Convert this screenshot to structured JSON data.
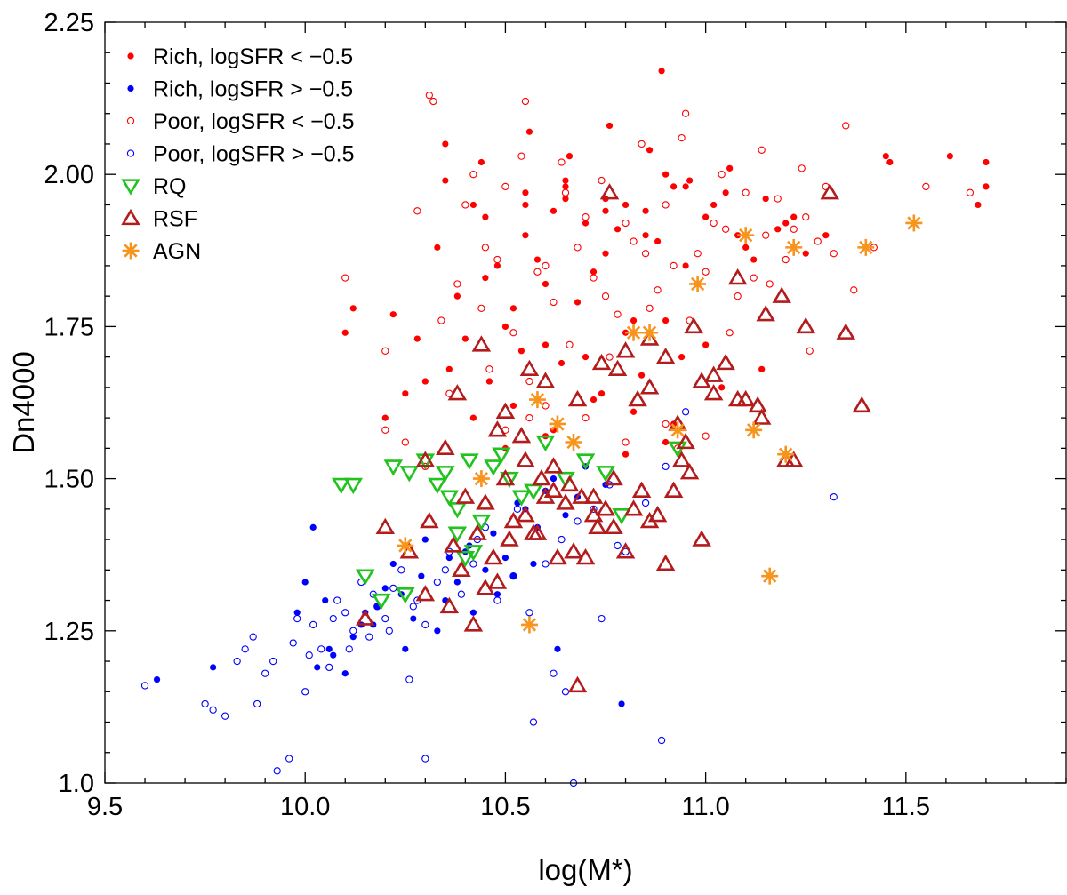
{
  "chart_data": {
    "type": "scatter",
    "title": "",
    "xlabel": "log(M*)",
    "ylabel": "Dn4000",
    "xlim": [
      9.5,
      11.9
    ],
    "ylim": [
      1.0,
      2.25
    ],
    "xticks": [
      {
        "value": 9.5,
        "label": "9.5"
      },
      {
        "value": 10.0,
        "label": "10.0"
      },
      {
        "value": 10.5,
        "label": "10.5"
      },
      {
        "value": 11.0,
        "label": "11.0"
      },
      {
        "value": 11.5,
        "label": "11.5"
      }
    ],
    "yticks": [
      {
        "value": 1.0,
        "label": "1.0"
      },
      {
        "value": 1.25,
        "label": "1.25"
      },
      {
        "value": 1.5,
        "label": "1.50"
      },
      {
        "value": 1.75,
        "label": "1.75"
      },
      {
        "value": 2.0,
        "label": "2.00"
      },
      {
        "value": 2.25,
        "label": "2.25"
      }
    ],
    "grid": false,
    "legend_position": "top-left",
    "series": [
      {
        "name": "Rich, logSFR < −0.5",
        "marker": "filled-circle",
        "color": "#ff0000",
        "x": [
          10.33,
          10.35,
          10.42,
          10.48,
          10.55,
          10.6,
          10.65,
          10.7,
          10.75,
          10.8,
          10.85,
          10.9,
          10.95,
          11.0,
          11.05,
          11.1,
          11.15,
          11.2,
          11.25,
          11.3,
          10.38,
          10.45,
          10.52,
          10.58,
          10.62,
          10.68,
          10.72,
          10.78,
          10.82,
          10.88,
          10.92,
          10.98,
          11.02,
          11.08,
          11.12,
          11.18,
          11.22,
          10.4,
          10.5,
          10.6,
          10.7,
          10.8,
          10.9,
          11.0,
          10.44,
          10.56,
          10.66,
          10.76,
          10.86,
          10.96,
          11.06,
          10.36,
          10.46,
          10.54,
          10.64,
          10.74,
          10.84,
          10.94,
          11.04,
          11.14,
          10.42,
          10.52,
          10.62,
          10.72,
          10.82,
          10.92,
          10.5,
          10.6,
          10.7,
          10.8,
          10.9,
          10.55,
          10.65,
          10.75,
          10.85,
          10.95,
          10.2,
          10.25,
          10.3,
          10.12,
          10.1,
          10.22,
          10.28,
          10.89,
          11.61,
          11.7,
          11.7,
          11.68,
          11.46,
          11.45,
          10.35,
          10.45,
          10.55,
          10.65,
          10.75
        ],
        "y": [
          1.88,
          2.05,
          1.95,
          1.85,
          1.9,
          1.82,
          1.98,
          1.92,
          1.87,
          1.95,
          1.9,
          2.0,
          1.85,
          1.93,
          1.97,
          1.88,
          1.96,
          1.92,
          1.87,
          1.9,
          1.8,
          1.83,
          1.78,
          1.86,
          1.94,
          1.79,
          1.84,
          1.91,
          1.76,
          1.89,
          1.98,
          1.82,
          1.95,
          1.9,
          1.86,
          1.91,
          1.93,
          1.73,
          1.75,
          1.72,
          1.7,
          1.74,
          1.76,
          1.72,
          2.02,
          2.07,
          2.03,
          2.08,
          2.04,
          1.99,
          2.01,
          1.68,
          1.66,
          1.71,
          1.69,
          1.64,
          1.67,
          1.7,
          1.65,
          1.68,
          1.6,
          1.62,
          1.58,
          1.63,
          1.61,
          1.59,
          1.55,
          1.57,
          1.52,
          1.54,
          1.56,
          1.97,
          1.99,
          1.96,
          1.94,
          1.98,
          1.6,
          1.64,
          1.66,
          1.78,
          1.74,
          1.77,
          1.73,
          2.17,
          2.03,
          2.02,
          1.98,
          1.95,
          2.02,
          2.03,
          1.99,
          1.93,
          1.95,
          1.96,
          1.94
        ]
      },
      {
        "name": "Rich, logSFR > −0.5",
        "marker": "filled-circle",
        "color": "#0000ff",
        "x": [
          9.63,
          9.77,
          10.0,
          10.02,
          10.05,
          10.07,
          10.1,
          10.12,
          10.15,
          10.17,
          10.2,
          10.22,
          10.25,
          10.27,
          10.3,
          10.33,
          10.35,
          10.38,
          10.4,
          10.42,
          10.45,
          10.48,
          10.5,
          10.52,
          10.55,
          10.58,
          10.6,
          10.62,
          10.65,
          10.7,
          10.75,
          10.79,
          9.98,
          10.03,
          10.06,
          10.14,
          10.18,
          10.24,
          10.29,
          10.36,
          10.41,
          10.47,
          10.53,
          10.57,
          10.63,
          10.68
        ],
        "y": [
          1.17,
          1.19,
          1.33,
          1.42,
          1.3,
          1.21,
          1.18,
          1.24,
          1.28,
          1.26,
          1.32,
          1.36,
          1.22,
          1.27,
          1.4,
          1.25,
          1.3,
          1.33,
          1.38,
          1.28,
          1.35,
          1.31,
          1.37,
          1.34,
          1.45,
          1.42,
          1.48,
          1.5,
          1.44,
          1.52,
          1.49,
          1.13,
          1.28,
          1.19,
          1.22,
          1.26,
          1.29,
          1.31,
          1.34,
          1.37,
          1.39,
          1.41,
          1.46,
          1.36,
          1.22,
          1.47
        ]
      },
      {
        "name": "Poor, logSFR < −0.5",
        "marker": "open-circle",
        "color": "#ff0000",
        "x": [
          10.1,
          10.2,
          10.28,
          10.32,
          10.4,
          10.45,
          10.5,
          10.55,
          10.6,
          10.65,
          10.7,
          10.75,
          10.8,
          10.85,
          10.9,
          10.95,
          11.0,
          11.05,
          11.1,
          11.15,
          11.2,
          11.25,
          11.3,
          11.35,
          11.42,
          11.55,
          11.66,
          10.34,
          10.38,
          10.44,
          10.48,
          10.52,
          10.58,
          10.62,
          10.68,
          10.72,
          10.78,
          10.82,
          10.88,
          10.92,
          10.98,
          11.02,
          11.08,
          11.12,
          11.18,
          11.22,
          11.28,
          11.32,
          10.36,
          10.46,
          10.56,
          10.66,
          10.76,
          10.86,
          10.96,
          11.06,
          11.16,
          10.42,
          10.54,
          10.64,
          10.74,
          10.84,
          10.94,
          11.04,
          11.14,
          11.24,
          10.5,
          10.6,
          10.7,
          10.8,
          10.9,
          11.0,
          10.25,
          10.3,
          10.2,
          10.31,
          10.56,
          10.93,
          11.37,
          11.26
        ],
        "y": [
          1.83,
          1.71,
          1.94,
          2.12,
          1.95,
          1.88,
          1.98,
          2.12,
          1.85,
          1.97,
          1.93,
          1.8,
          1.92,
          1.87,
          1.95,
          2.1,
          1.84,
          1.91,
          1.97,
          1.9,
          1.86,
          1.93,
          1.98,
          2.08,
          1.88,
          1.98,
          1.97,
          1.76,
          1.82,
          1.78,
          1.86,
          1.74,
          1.84,
          1.79,
          1.88,
          1.83,
          1.77,
          1.89,
          1.81,
          1.85,
          1.87,
          1.92,
          1.8,
          1.83,
          1.96,
          1.91,
          1.89,
          1.87,
          1.64,
          1.68,
          1.66,
          1.72,
          1.7,
          1.78,
          1.76,
          1.74,
          1.82,
          2.0,
          2.03,
          2.02,
          1.99,
          2.05,
          2.06,
          2.0,
          2.04,
          2.01,
          1.58,
          1.62,
          1.6,
          1.56,
          1.59,
          1.57,
          1.56,
          1.52,
          1.58,
          2.13,
          1.6,
          1.55,
          1.81,
          1.71
        ]
      },
      {
        "name": "Poor, logSFR > −0.5",
        "marker": "open-circle",
        "color": "#0000ff",
        "x": [
          9.6,
          9.75,
          9.77,
          9.8,
          9.85,
          9.87,
          9.9,
          9.93,
          9.96,
          9.98,
          10.0,
          10.02,
          10.04,
          10.06,
          10.08,
          10.1,
          10.12,
          10.14,
          10.16,
          10.18,
          10.2,
          10.22,
          10.24,
          10.26,
          10.28,
          10.3,
          10.33,
          10.36,
          10.39,
          10.42,
          10.45,
          10.48,
          10.52,
          10.56,
          10.6,
          10.64,
          10.68,
          10.72,
          10.76,
          10.8,
          10.85,
          10.9,
          10.95,
          11.32,
          9.83,
          9.88,
          9.92,
          9.97,
          10.01,
          10.07,
          10.11,
          10.17,
          10.21,
          10.27,
          10.35,
          10.43,
          10.53,
          10.57,
          10.62,
          10.67,
          10.74,
          10.78,
          10.89,
          10.65,
          10.3
        ],
        "y": [
          1.16,
          1.13,
          1.12,
          1.11,
          1.22,
          1.24,
          1.18,
          1.02,
          1.04,
          1.27,
          1.15,
          1.26,
          1.22,
          1.19,
          1.3,
          1.28,
          1.25,
          1.33,
          1.24,
          1.29,
          1.27,
          1.32,
          1.35,
          1.17,
          1.3,
          1.26,
          1.33,
          1.38,
          1.31,
          1.36,
          1.42,
          1.3,
          1.34,
          1.28,
          1.36,
          1.4,
          1.43,
          1.45,
          1.49,
          1.38,
          1.46,
          1.52,
          1.61,
          1.47,
          1.2,
          1.13,
          1.2,
          1.23,
          1.21,
          1.27,
          1.22,
          1.31,
          1.25,
          1.29,
          1.35,
          1.4,
          1.45,
          1.1,
          1.18,
          1.0,
          1.27,
          1.39,
          1.07,
          1.15,
          1.04
        ]
      },
      {
        "name": "RQ",
        "marker": "down-triangle",
        "color": "#22c21f",
        "x": [
          10.09,
          10.12,
          10.15,
          10.19,
          10.22,
          10.26,
          10.3,
          10.33,
          10.35,
          10.38,
          10.4,
          10.42,
          10.44,
          10.47,
          10.49,
          10.51,
          10.54,
          10.57,
          10.6,
          10.65,
          10.7,
          10.75,
          10.79,
          10.93,
          10.36,
          10.38,
          10.41,
          10.25
        ],
        "y": [
          1.49,
          1.49,
          1.34,
          1.3,
          1.52,
          1.51,
          1.53,
          1.49,
          1.51,
          1.45,
          1.37,
          1.38,
          1.43,
          1.52,
          1.54,
          1.5,
          1.47,
          1.48,
          1.56,
          1.5,
          1.53,
          1.51,
          1.44,
          1.55,
          1.47,
          1.41,
          1.53,
          1.31
        ]
      },
      {
        "name": "RSF",
        "marker": "up-triangle",
        "color": "#b21c1c",
        "x": [
          10.2,
          10.26,
          10.3,
          10.35,
          10.37,
          10.4,
          10.43,
          10.45,
          10.47,
          10.5,
          10.52,
          10.55,
          10.57,
          10.6,
          10.62,
          10.65,
          10.67,
          10.7,
          10.72,
          10.75,
          10.77,
          10.8,
          10.83,
          10.86,
          10.9,
          10.93,
          10.95,
          10.99,
          11.02,
          11.05,
          11.08,
          11.1,
          11.15,
          11.2,
          11.25,
          11.31,
          11.35,
          11.39,
          10.3,
          10.36,
          10.42,
          10.48,
          10.54,
          10.6,
          10.66,
          10.72,
          10.78,
          10.84,
          10.9,
          10.96,
          11.02,
          11.08,
          11.14,
          10.38,
          10.44,
          10.5,
          10.56,
          10.62,
          10.68,
          10.74,
          10.8,
          10.86,
          10.92,
          10.15,
          10.31,
          10.39,
          10.45,
          10.51,
          10.55,
          10.59,
          10.63,
          10.69,
          10.73,
          10.77,
          10.82,
          10.88,
          10.94,
          10.99,
          10.48,
          10.58,
          10.68,
          10.76,
          10.86,
          10.97,
          11.13,
          11.19,
          11.22
        ],
        "y": [
          1.42,
          1.38,
          1.53,
          1.55,
          1.39,
          1.47,
          1.41,
          1.46,
          1.37,
          1.5,
          1.43,
          1.53,
          1.41,
          1.66,
          1.52,
          1.46,
          1.38,
          1.37,
          1.47,
          1.45,
          1.42,
          1.38,
          1.63,
          1.65,
          1.36,
          1.59,
          1.56,
          1.4,
          1.67,
          1.69,
          1.63,
          1.63,
          1.77,
          1.53,
          1.75,
          1.97,
          1.74,
          1.62,
          1.31,
          1.29,
          1.26,
          1.33,
          1.57,
          1.47,
          1.49,
          1.44,
          1.68,
          1.48,
          1.7,
          1.51,
          1.64,
          1.83,
          1.6,
          1.64,
          1.72,
          1.61,
          1.68,
          1.48,
          1.63,
          1.69,
          1.71,
          1.43,
          1.48,
          1.27,
          1.43,
          1.35,
          1.32,
          1.4,
          1.44,
          1.5,
          1.37,
          1.47,
          1.42,
          1.5,
          1.45,
          1.44,
          1.53,
          1.66,
          1.58,
          1.41,
          1.16,
          1.97,
          1.73,
          1.75,
          1.62,
          1.8,
          1.53
        ]
      },
      {
        "name": "AGN",
        "marker": "asterisk",
        "color": "#f7941d",
        "x": [
          10.25,
          10.44,
          10.56,
          10.58,
          10.63,
          10.67,
          10.82,
          10.86,
          10.93,
          10.98,
          11.1,
          11.12,
          11.16,
          11.2,
          11.22,
          11.4,
          11.52
        ],
        "y": [
          1.39,
          1.5,
          1.26,
          1.63,
          1.59,
          1.56,
          1.74,
          1.74,
          1.58,
          1.82,
          1.9,
          1.58,
          1.34,
          1.54,
          1.88,
          1.88,
          1.92
        ]
      }
    ]
  }
}
